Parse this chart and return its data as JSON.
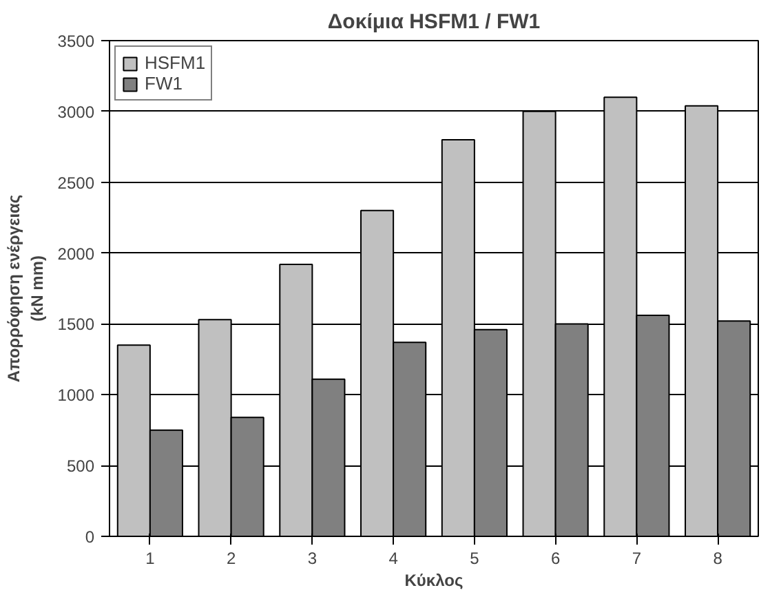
{
  "chart_data": {
    "type": "bar",
    "title": "Δοκίμια HSFM1 / FW1",
    "xlabel": "Κύκλος",
    "ylabel": "Απορρόφηση ενέργειας\n(kN mm)",
    "categories": [
      "1",
      "2",
      "3",
      "4",
      "5",
      "6",
      "7",
      "8"
    ],
    "series": [
      {
        "name": "HSFM1",
        "color": "#c0c0c0",
        "values": [
          1350,
          1530,
          1920,
          2300,
          2800,
          3000,
          3100,
          3040
        ]
      },
      {
        "name": "FW1",
        "color": "#808080",
        "values": [
          750,
          840,
          1110,
          1370,
          1460,
          1500,
          1560,
          1520
        ]
      }
    ],
    "ylim": [
      0,
      3500
    ],
    "yticks": [
      0,
      500,
      1000,
      1500,
      2000,
      2500,
      3000,
      3500
    ],
    "grid": "y",
    "legend": "top left"
  }
}
